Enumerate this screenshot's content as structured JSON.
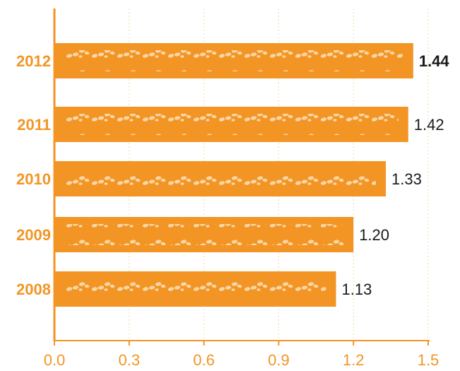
{
  "colors": {
    "accent": "#f39524",
    "axis": "#f39524",
    "grid": "#f6d8a8",
    "text_dark": "#1a1a1a",
    "dots": "#f9d6a6"
  },
  "chart_data": {
    "type": "bar",
    "orientation": "horizontal",
    "categories": [
      "2012",
      "2011",
      "2010",
      "2009",
      "2008"
    ],
    "values": [
      1.44,
      1.42,
      1.33,
      1.2,
      1.13
    ],
    "value_labels": [
      "1.44",
      "1.42",
      "1.33",
      "1.20",
      "1.13"
    ],
    "highlight": "2012",
    "xlim": [
      0,
      1.5
    ],
    "xticks": [
      "0.0",
      "0.3",
      "0.6",
      "0.9",
      "1.2",
      "1.5"
    ],
    "grid": "vertical dashed",
    "title": "",
    "xlabel": "",
    "ylabel": ""
  }
}
